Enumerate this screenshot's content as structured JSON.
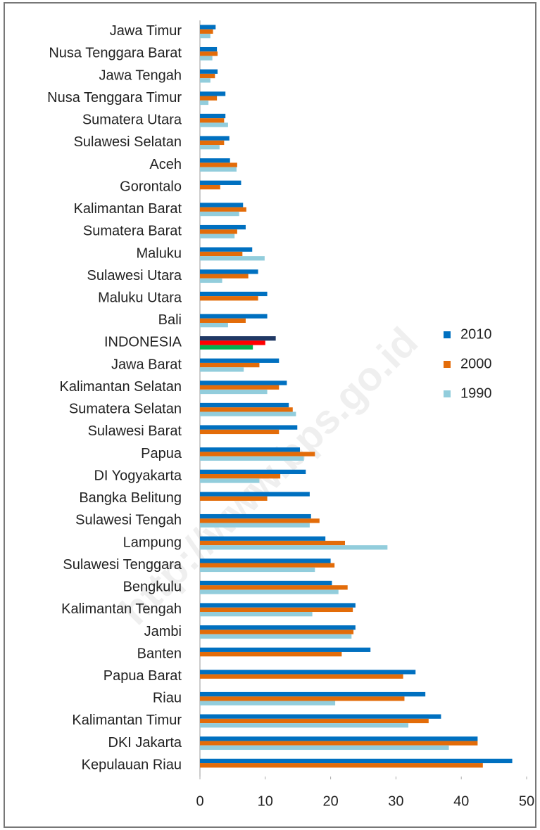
{
  "chart_data": {
    "type": "bar",
    "orientation": "horizontal",
    "categories": [
      "Jawa Timur",
      "Nusa Tenggara Barat",
      "Jawa Tengah",
      "Nusa Tenggara Timur",
      "Sumatera Utara",
      "Sulawesi Selatan",
      "Aceh",
      "Gorontalo",
      "Kalimantan Barat",
      "Sumatera Barat",
      "Maluku",
      "Sulawesi Utara",
      "Maluku Utara",
      "Bali",
      "INDONESIA",
      "Jawa Barat",
      "Kalimantan Selatan",
      "Sumatera Selatan",
      "Sulawesi Barat",
      "Papua",
      "DI Yogyakarta",
      "Bangka Belitung",
      "Sulawesi Tengah",
      "Lampung",
      "Sulawesi Tenggara",
      "Bengkulu",
      "Kalimantan Tengah",
      "Jambi",
      "Banten",
      "Papua Barat",
      "Riau",
      "Kalimantan Timur",
      "DKI Jakarta",
      "Kepulauan Riau"
    ],
    "series": [
      {
        "name": "2010",
        "color": "#0070c0",
        "highlight_color": "#1f3864",
        "values": [
          2.4,
          2.6,
          2.7,
          3.9,
          3.9,
          4.5,
          4.6,
          6.3,
          6.6,
          7.0,
          8.0,
          8.9,
          10.3,
          10.3,
          11.6,
          12.1,
          13.3,
          13.6,
          14.9,
          15.3,
          16.2,
          16.8,
          17.0,
          19.2,
          20.0,
          20.2,
          23.8,
          23.8,
          26.1,
          33.0,
          34.5,
          36.9,
          42.5,
          47.8
        ]
      },
      {
        "name": "2000",
        "color": "#e36c09",
        "highlight_color": "#ff0000",
        "values": [
          2.0,
          2.7,
          2.3,
          2.6,
          3.7,
          3.7,
          5.7,
          3.1,
          7.1,
          5.7,
          6.5,
          7.4,
          8.9,
          7.0,
          10.0,
          9.1,
          12.1,
          14.2,
          12.1,
          17.6,
          12.3,
          10.3,
          18.3,
          22.2,
          20.6,
          22.6,
          23.4,
          23.5,
          21.7,
          31.1,
          31.3,
          35.0,
          42.5,
          43.3
        ]
      },
      {
        "name": "1990",
        "color": "#92cddc",
        "highlight_color": "#00b050",
        "values": [
          1.6,
          1.9,
          1.6,
          1.3,
          4.3,
          3.0,
          5.6,
          null,
          6.0,
          5.3,
          9.9,
          3.4,
          null,
          4.3,
          8.1,
          6.7,
          10.3,
          14.7,
          null,
          15.9,
          9.1,
          null,
          16.8,
          28.7,
          17.6,
          21.2,
          17.2,
          23.2,
          null,
          null,
          20.7,
          31.9,
          38.1,
          null
        ]
      }
    ],
    "highlight_category": "INDONESIA",
    "xlim": [
      0,
      50
    ],
    "xticks": [
      0,
      10,
      20,
      30,
      40,
      50
    ],
    "legend": "right",
    "watermark": "http://www.bps.go.id"
  }
}
